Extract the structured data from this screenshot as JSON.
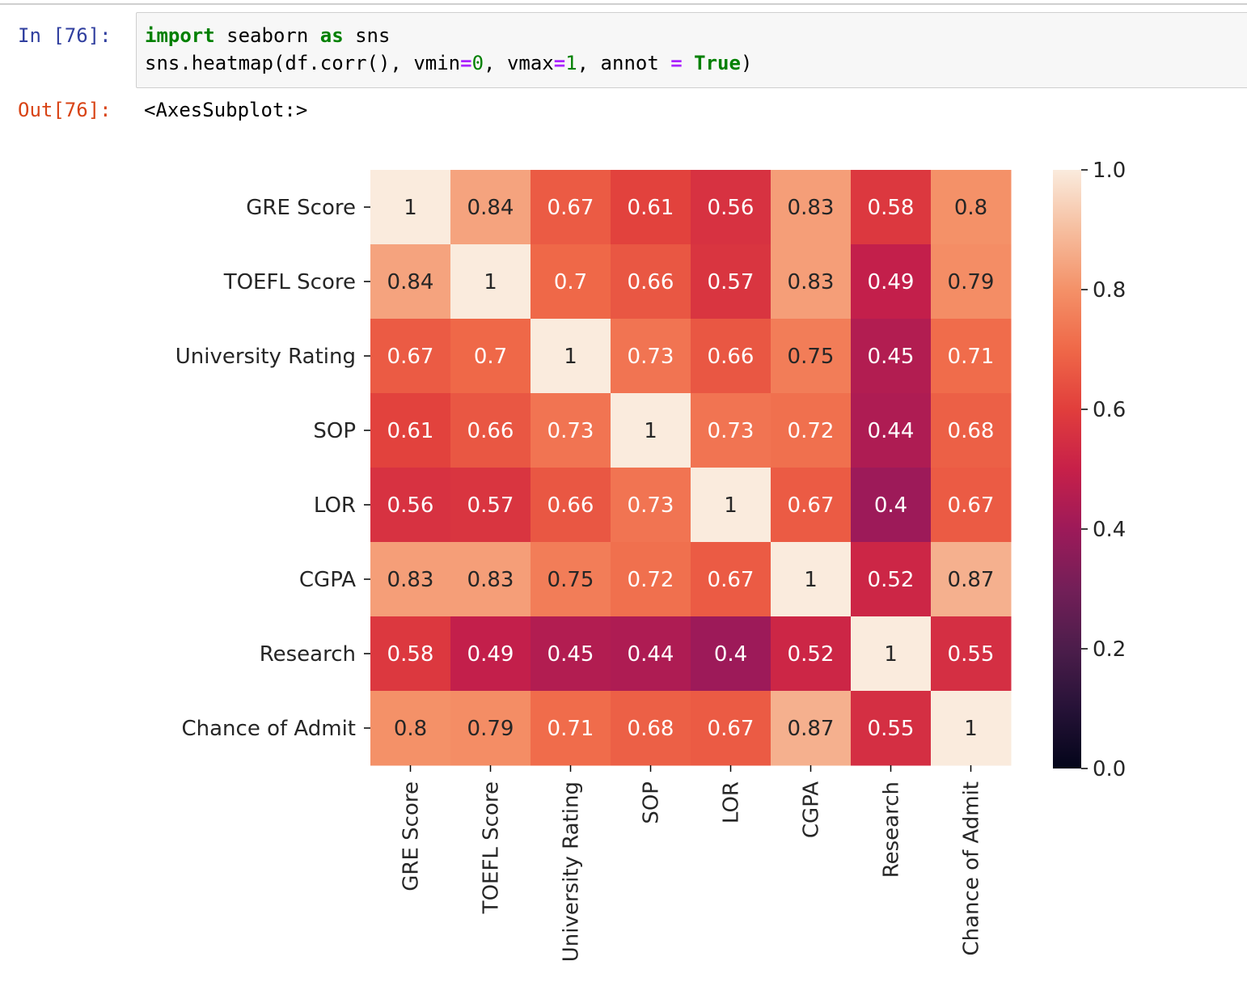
{
  "cell_in": {
    "prompt": "In [76]:",
    "line1": {
      "kw1": "import",
      "t1": " seaborn ",
      "kw2": "as",
      "t2": " sns"
    },
    "line2": {
      "t1": "sns.heatmap(df.corr(), vmin",
      "op1": "=",
      "n1": "0",
      "t2": ", vmax",
      "op2": "=",
      "n2": "1",
      "t3": ", annot ",
      "op3": "=",
      "t4": " ",
      "kw1": "True",
      "t5": ")"
    }
  },
  "cell_out": {
    "prompt": "Out[76]:",
    "text": "<AxesSubplot:>"
  },
  "chart_data": {
    "type": "heatmap",
    "rows": [
      "GRE Score",
      "TOEFL Score",
      "University Rating",
      "SOP",
      "LOR",
      "CGPA",
      "Research",
      "Chance of Admit"
    ],
    "columns": [
      "GRE Score",
      "TOEFL Score",
      "University Rating",
      "SOP",
      "LOR",
      "CGPA",
      "Research",
      "Chance of Admit"
    ],
    "values": [
      [
        1,
        0.84,
        0.67,
        0.61,
        0.56,
        0.83,
        0.58,
        0.8
      ],
      [
        0.84,
        1,
        0.7,
        0.66,
        0.57,
        0.83,
        0.49,
        0.79
      ],
      [
        0.67,
        0.7,
        1,
        0.73,
        0.66,
        0.75,
        0.45,
        0.71
      ],
      [
        0.61,
        0.66,
        0.73,
        1,
        0.73,
        0.72,
        0.44,
        0.68
      ],
      [
        0.56,
        0.57,
        0.66,
        0.73,
        1,
        0.67,
        0.4,
        0.67
      ],
      [
        0.83,
        0.83,
        0.75,
        0.72,
        0.67,
        1,
        0.52,
        0.87
      ],
      [
        0.58,
        0.49,
        0.45,
        0.44,
        0.4,
        0.52,
        1,
        0.55
      ],
      [
        0.8,
        0.79,
        0.71,
        0.68,
        0.67,
        0.87,
        0.55,
        1
      ]
    ],
    "vmin": 0,
    "vmax": 1,
    "annot": true,
    "colormap": "rocket",
    "colorbar_ticks": [
      "0.0",
      "0.2",
      "0.4",
      "0.6",
      "0.8",
      "1.0"
    ],
    "colorbar_tick_values": [
      0,
      0.2,
      0.4,
      0.6,
      0.8,
      1.0
    ]
  }
}
